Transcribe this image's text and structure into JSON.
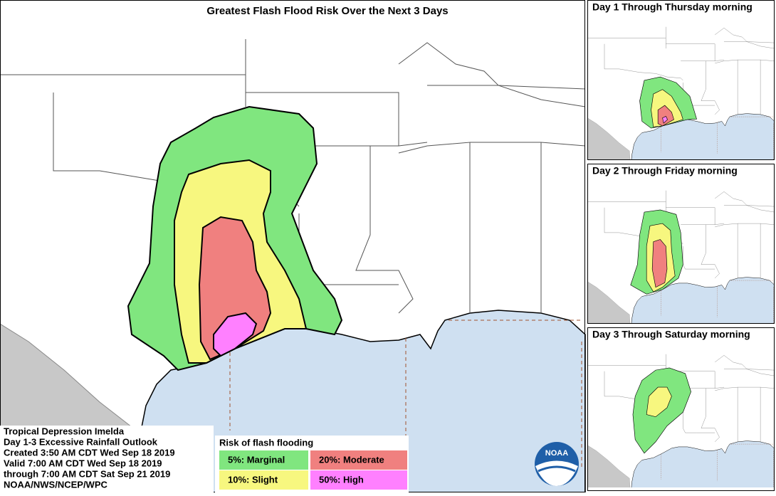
{
  "header": {
    "title": "Greatest Flash Flood Risk Over the Next 3 Days"
  },
  "panels": [
    {
      "title": "Day 1 Through Thursday morning"
    },
    {
      "title": "Day 2 Through Friday morning"
    },
    {
      "title": "Day 3 Through Saturday morning"
    }
  ],
  "info": {
    "lines": [
      "Tropical Depression Imelda",
      "Day 1-3 Excessive Rainfall Outlook",
      "Created 3:50 AM CDT Wed Sep 18 2019",
      "Valid 7:00 AM CDT Wed Sep 18 2019",
      "through 7:00 AM CDT Sat Sep 21 2019",
      "NOAA/NWS/NCEP/WPC"
    ]
  },
  "legend": {
    "title": "Risk of flash flooding",
    "items": [
      {
        "label": "5%: Marginal",
        "color": "#80e67f"
      },
      {
        "label": "20%: Moderate",
        "color": "#f0807f"
      },
      {
        "label": "10%: Slight",
        "color": "#f7f77f"
      },
      {
        "label": "50%: High",
        "color": "#ff80ff"
      }
    ]
  },
  "logo": {
    "text": "NOAA"
  }
}
